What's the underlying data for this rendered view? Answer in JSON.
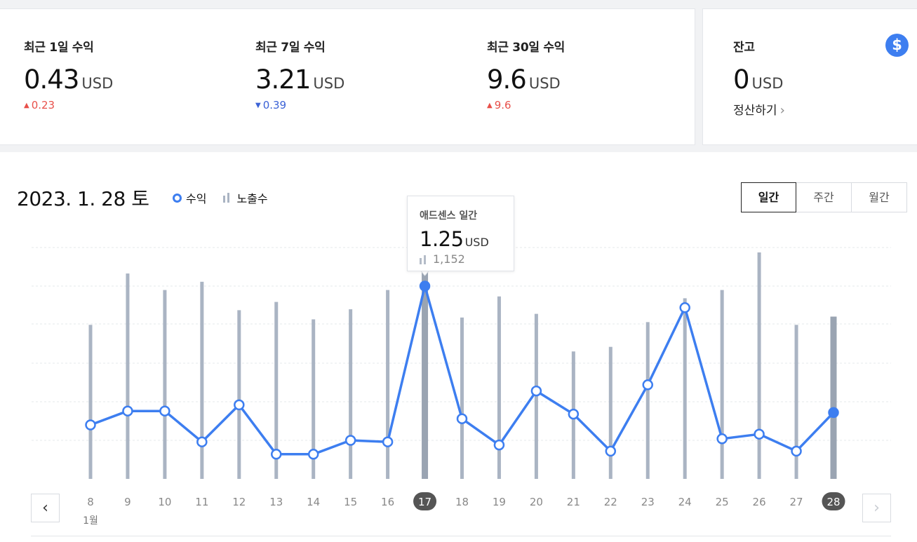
{
  "summary": [
    {
      "label": "최근 1일 수익",
      "value": "0.43",
      "unit": "USD",
      "delta": "0.23",
      "direction": "up"
    },
    {
      "label": "최근 7일 수익",
      "value": "3.21",
      "unit": "USD",
      "delta": "0.39",
      "direction": "down"
    },
    {
      "label": "최근 30일 수익",
      "value": "9.6",
      "unit": "USD",
      "delta": "9.6",
      "direction": "up"
    }
  ],
  "balance": {
    "label": "잔고",
    "value": "0",
    "unit": "USD",
    "settle_label": "정산하기",
    "icon": "dollar-icon",
    "icon_glyph": "$"
  },
  "glyphs": {
    "up": "▲",
    "down": "▼",
    "chevron_right": "›",
    "chevron_left": "‹"
  },
  "header": {
    "date": "2023. 1. 28 토"
  },
  "legend": {
    "revenue": "수익",
    "impressions": "노출수"
  },
  "period_tabs": [
    "일간",
    "주간",
    "월간"
  ],
  "active_period": "일간",
  "tooltip": {
    "title": "애드센스 일간",
    "value": "1.25",
    "unit": "USD",
    "impressions": "1,152"
  },
  "colors": {
    "line": "#3d7ef0",
    "bar": "#aab4c3",
    "bar_active": "#9aa4b2",
    "up": "#e8504a",
    "down": "#3b62d6",
    "accent": "#3d7ef0"
  },
  "chart_data": {
    "type": "line",
    "categories": [
      "8",
      "9",
      "10",
      "11",
      "12",
      "13",
      "14",
      "15",
      "16",
      "17",
      "18",
      "19",
      "20",
      "21",
      "22",
      "23",
      "24",
      "25",
      "26",
      "27",
      "28"
    ],
    "month_label": "1월",
    "selected": [
      "17",
      "28"
    ],
    "series": [
      {
        "name": "수익",
        "kind": "line",
        "values": [
          0.35,
          0.44,
          0.44,
          0.24,
          0.48,
          0.16,
          0.16,
          0.25,
          0.24,
          1.25,
          0.39,
          0.22,
          0.57,
          0.42,
          0.18,
          0.61,
          1.11,
          0.26,
          0.29,
          0.18,
          0.43
        ]
      },
      {
        "name": "노출수",
        "kind": "bar",
        "values": [
          840,
          1120,
          1030,
          1075,
          920,
          965,
          870,
          925,
          1030,
          1152,
          880,
          995,
          900,
          695,
          720,
          855,
          985,
          1030,
          1235,
          840,
          885
        ]
      }
    ]
  }
}
